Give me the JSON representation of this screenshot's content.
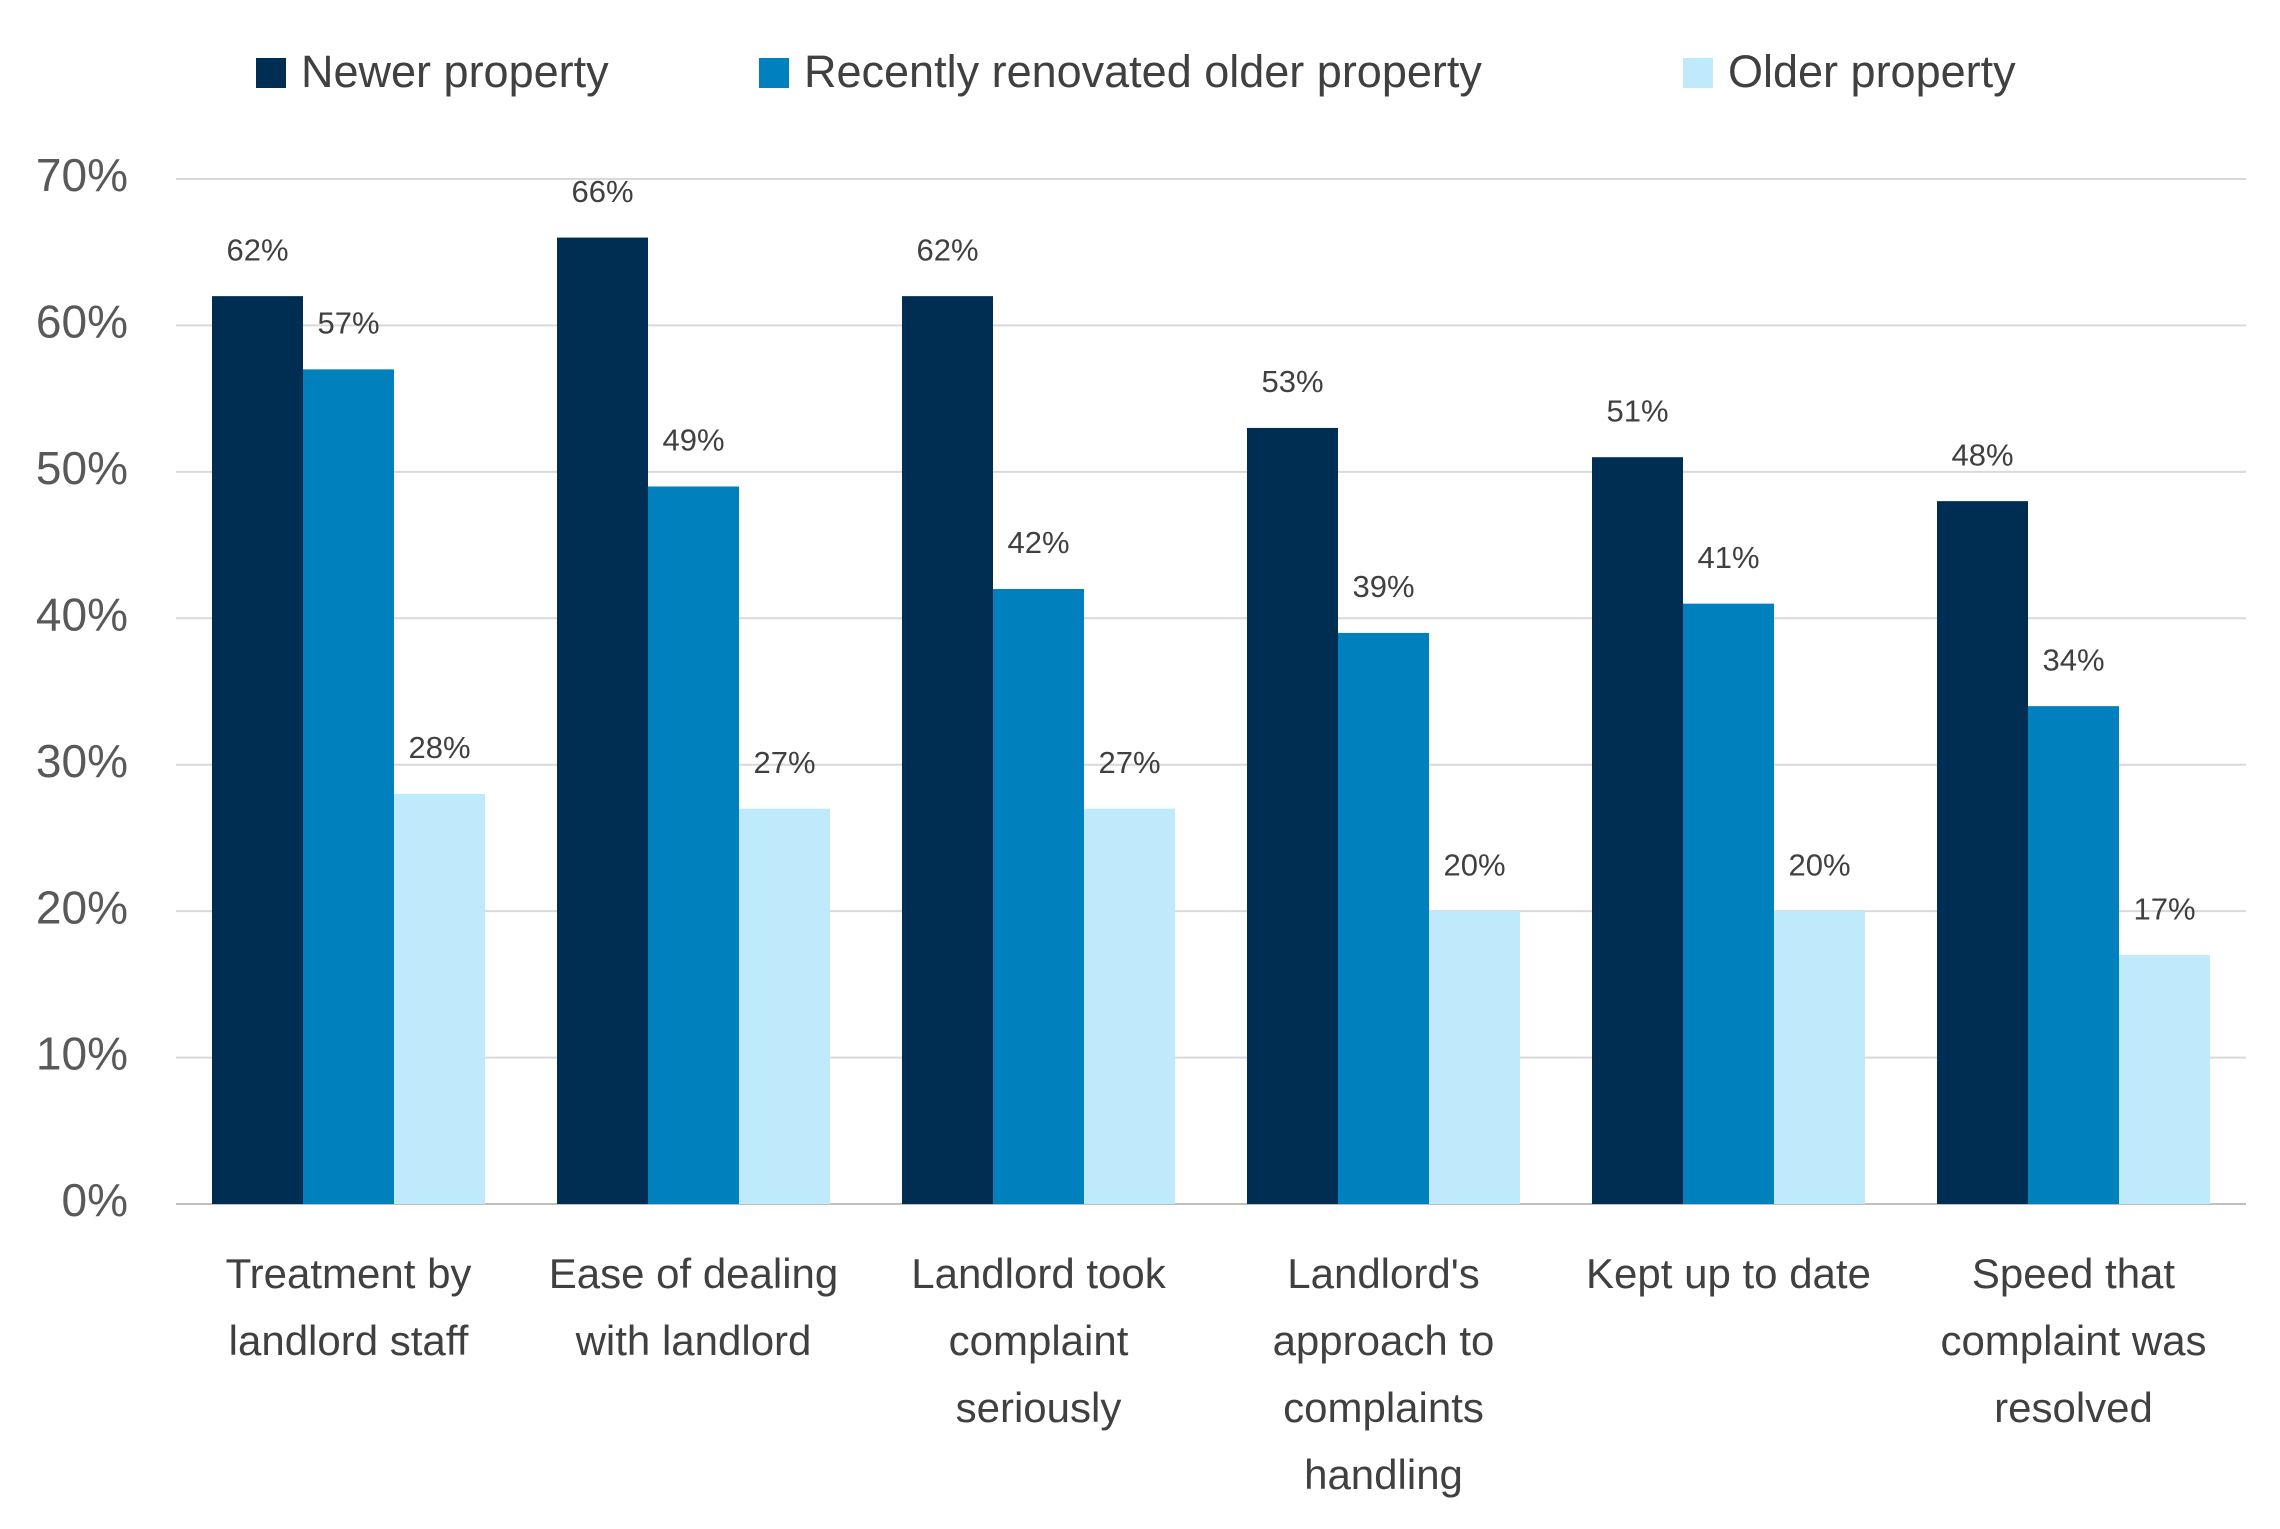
{
  "chart_data": {
    "type": "bar",
    "categories": [
      "Treatment by landlord staff",
      "Ease of dealing with landlord",
      "Landlord took complaint seriously",
      "Landlord's approach to complaints handling",
      "Kept up to date",
      "Speed that complaint was resolved"
    ],
    "series": [
      {
        "name": "Newer property",
        "color": "#002d52",
        "values": [
          62,
          66,
          62,
          53,
          51,
          48
        ],
        "value_labels": [
          "62%",
          "66%",
          "62%",
          "53%",
          "51%",
          "48%"
        ]
      },
      {
        "name": "Recently renovated older property",
        "color": "#0080bc",
        "values": [
          57,
          49,
          42,
          39,
          41,
          34
        ],
        "value_labels": [
          "57%",
          "49%",
          "42%",
          "39%",
          "41%",
          "34%"
        ]
      },
      {
        "name": "Older property",
        "color": "#bfeafb",
        "values": [
          28,
          27,
          27,
          20,
          20,
          17
        ],
        "value_labels": [
          "28%",
          "27%",
          "27%",
          "20%",
          "20%",
          "17%"
        ]
      }
    ],
    "ylim": [
      0,
      70
    ],
    "yticks": [
      {
        "value": 0,
        "label": "0%"
      },
      {
        "value": 10,
        "label": "10%"
      },
      {
        "value": 20,
        "label": "20%"
      },
      {
        "value": 30,
        "label": "30%"
      },
      {
        "value": 40,
        "label": "40%"
      },
      {
        "value": 50,
        "label": "50%"
      },
      {
        "value": 60,
        "label": "60%"
      },
      {
        "value": 70,
        "label": "70%"
      }
    ],
    "grid": true,
    "legend": "top"
  }
}
